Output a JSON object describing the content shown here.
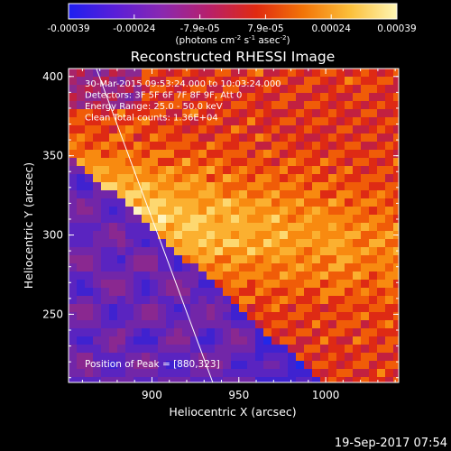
{
  "chart_data": {
    "type": "heatmap",
    "title": "Reconstructed RHESSI Image",
    "xlabel": "Heliocentric X (arcsec)",
    "ylabel": "Heliocentric Y (arcsec)",
    "xlim": [
      852,
      1042
    ],
    "ylim": [
      207,
      405
    ],
    "x_ticks": [
      "900",
      "950",
      "1000"
    ],
    "y_ticks": [
      "250",
      "300",
      "350",
      "400"
    ],
    "colorbar": {
      "range": [
        -0.00039,
        0.00039
      ],
      "tick_labels": [
        "-0.00039",
        "-0.00024",
        "-7.9e-05",
        "7.9e-05",
        "0.00024",
        "0.00039"
      ],
      "unit_label": "(photons cm^-2 s^-1 asec^-2)",
      "colors": [
        "#1e1ef0",
        "#5a1ed8",
        "#8a28b0",
        "#b8206a",
        "#e02a10",
        "#f27408",
        "#fbbf3a",
        "#fff6b4"
      ]
    },
    "annotations": [
      "30-Mar-2015 09:53:24.000 to 10:03:24.000",
      "Detectors: 3F 5F 6F 7F 8F 9F, Att 0",
      "Energy Range: 25.0 - 50.0 keV",
      "Clean    Total counts: 1.36E+04"
    ],
    "peak_label": "Position of Peak = [880,323]",
    "peak_position": [
      880,
      323
    ],
    "limb_line": [
      [
        868,
        405
      ],
      [
        935,
        207
      ]
    ]
  },
  "footer": {
    "timestamp": "19-Sep-2017 07:54"
  }
}
